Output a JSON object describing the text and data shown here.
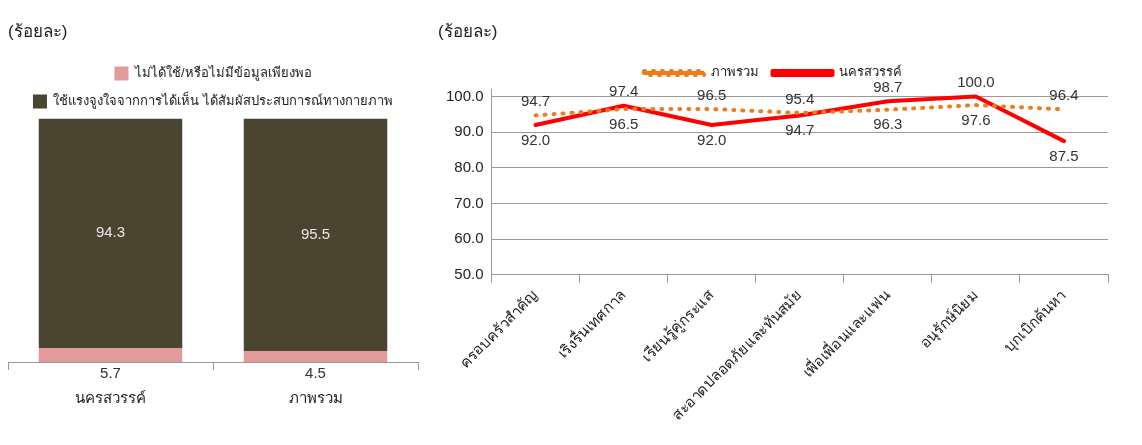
{
  "chart_data": [
    {
      "type": "bar",
      "stacked": true,
      "title": "(ร้อยละ)",
      "categories": [
        "นครสวรรค์",
        "ภาพรวม"
      ],
      "series": [
        {
          "name": "ไม่ได้ใช้/หรือไม่มีข้อมูลเพียงพอ",
          "color": "#e39a9a",
          "values": [
            5.7,
            4.5
          ]
        },
        {
          "name": "ใช้แรงจูงใจจากการได้เห็น ได้สัมผัสประสบการณ์ทางกายภาพ",
          "color": "#4a4530",
          "values": [
            94.3,
            95.5
          ]
        }
      ],
      "ylim": [
        0,
        100
      ],
      "tick_labels": "x",
      "legend": "top",
      "data_labels": true
    },
    {
      "type": "line",
      "title": "(ร้อยละ)",
      "categories": [
        "ครอบครัวสำคัญ",
        "เริงรื่นเทศกาล",
        "เรียนรู้คู่กระแส",
        "สะอาดปลอดภัยและทันสมัย",
        "เพื่อเพื่อนและแฟน",
        "อนุรักษ์นิยม",
        "บุกเบิกค้นหา"
      ],
      "series": [
        {
          "name": "ภาพรวม",
          "color": "#f07b1a",
          "line_style": "dotted",
          "values": [
            94.7,
            96.5,
            96.5,
            95.4,
            96.3,
            97.6,
            96.4
          ],
          "value_labels": [
            "94.7",
            "96.5",
            "96.5",
            "95.4",
            "96.3",
            "97.6",
            "96.4"
          ]
        },
        {
          "name": "นครสวรรค์",
          "color": "#ff0000",
          "line_style": "solid",
          "values": [
            92.0,
            97.4,
            92.0,
            94.7,
            98.7,
            100.0,
            87.5
          ],
          "value_labels": [
            "92.0",
            "97.4",
            "92.0",
            "94.7",
            "98.7",
            "100.0",
            "87.5"
          ]
        }
      ],
      "ylim": [
        50,
        102
      ],
      "yticks": [
        {
          "value": 50,
          "label": "50.0"
        },
        {
          "value": 60,
          "label": "60.0"
        },
        {
          "value": 70,
          "label": "70.0"
        },
        {
          "value": 80,
          "label": "80.0"
        },
        {
          "value": 90,
          "label": "90.0"
        },
        {
          "value": 100,
          "label": "100.0"
        }
      ],
      "grid": "y",
      "legend": "top",
      "marker": "none"
    }
  ]
}
